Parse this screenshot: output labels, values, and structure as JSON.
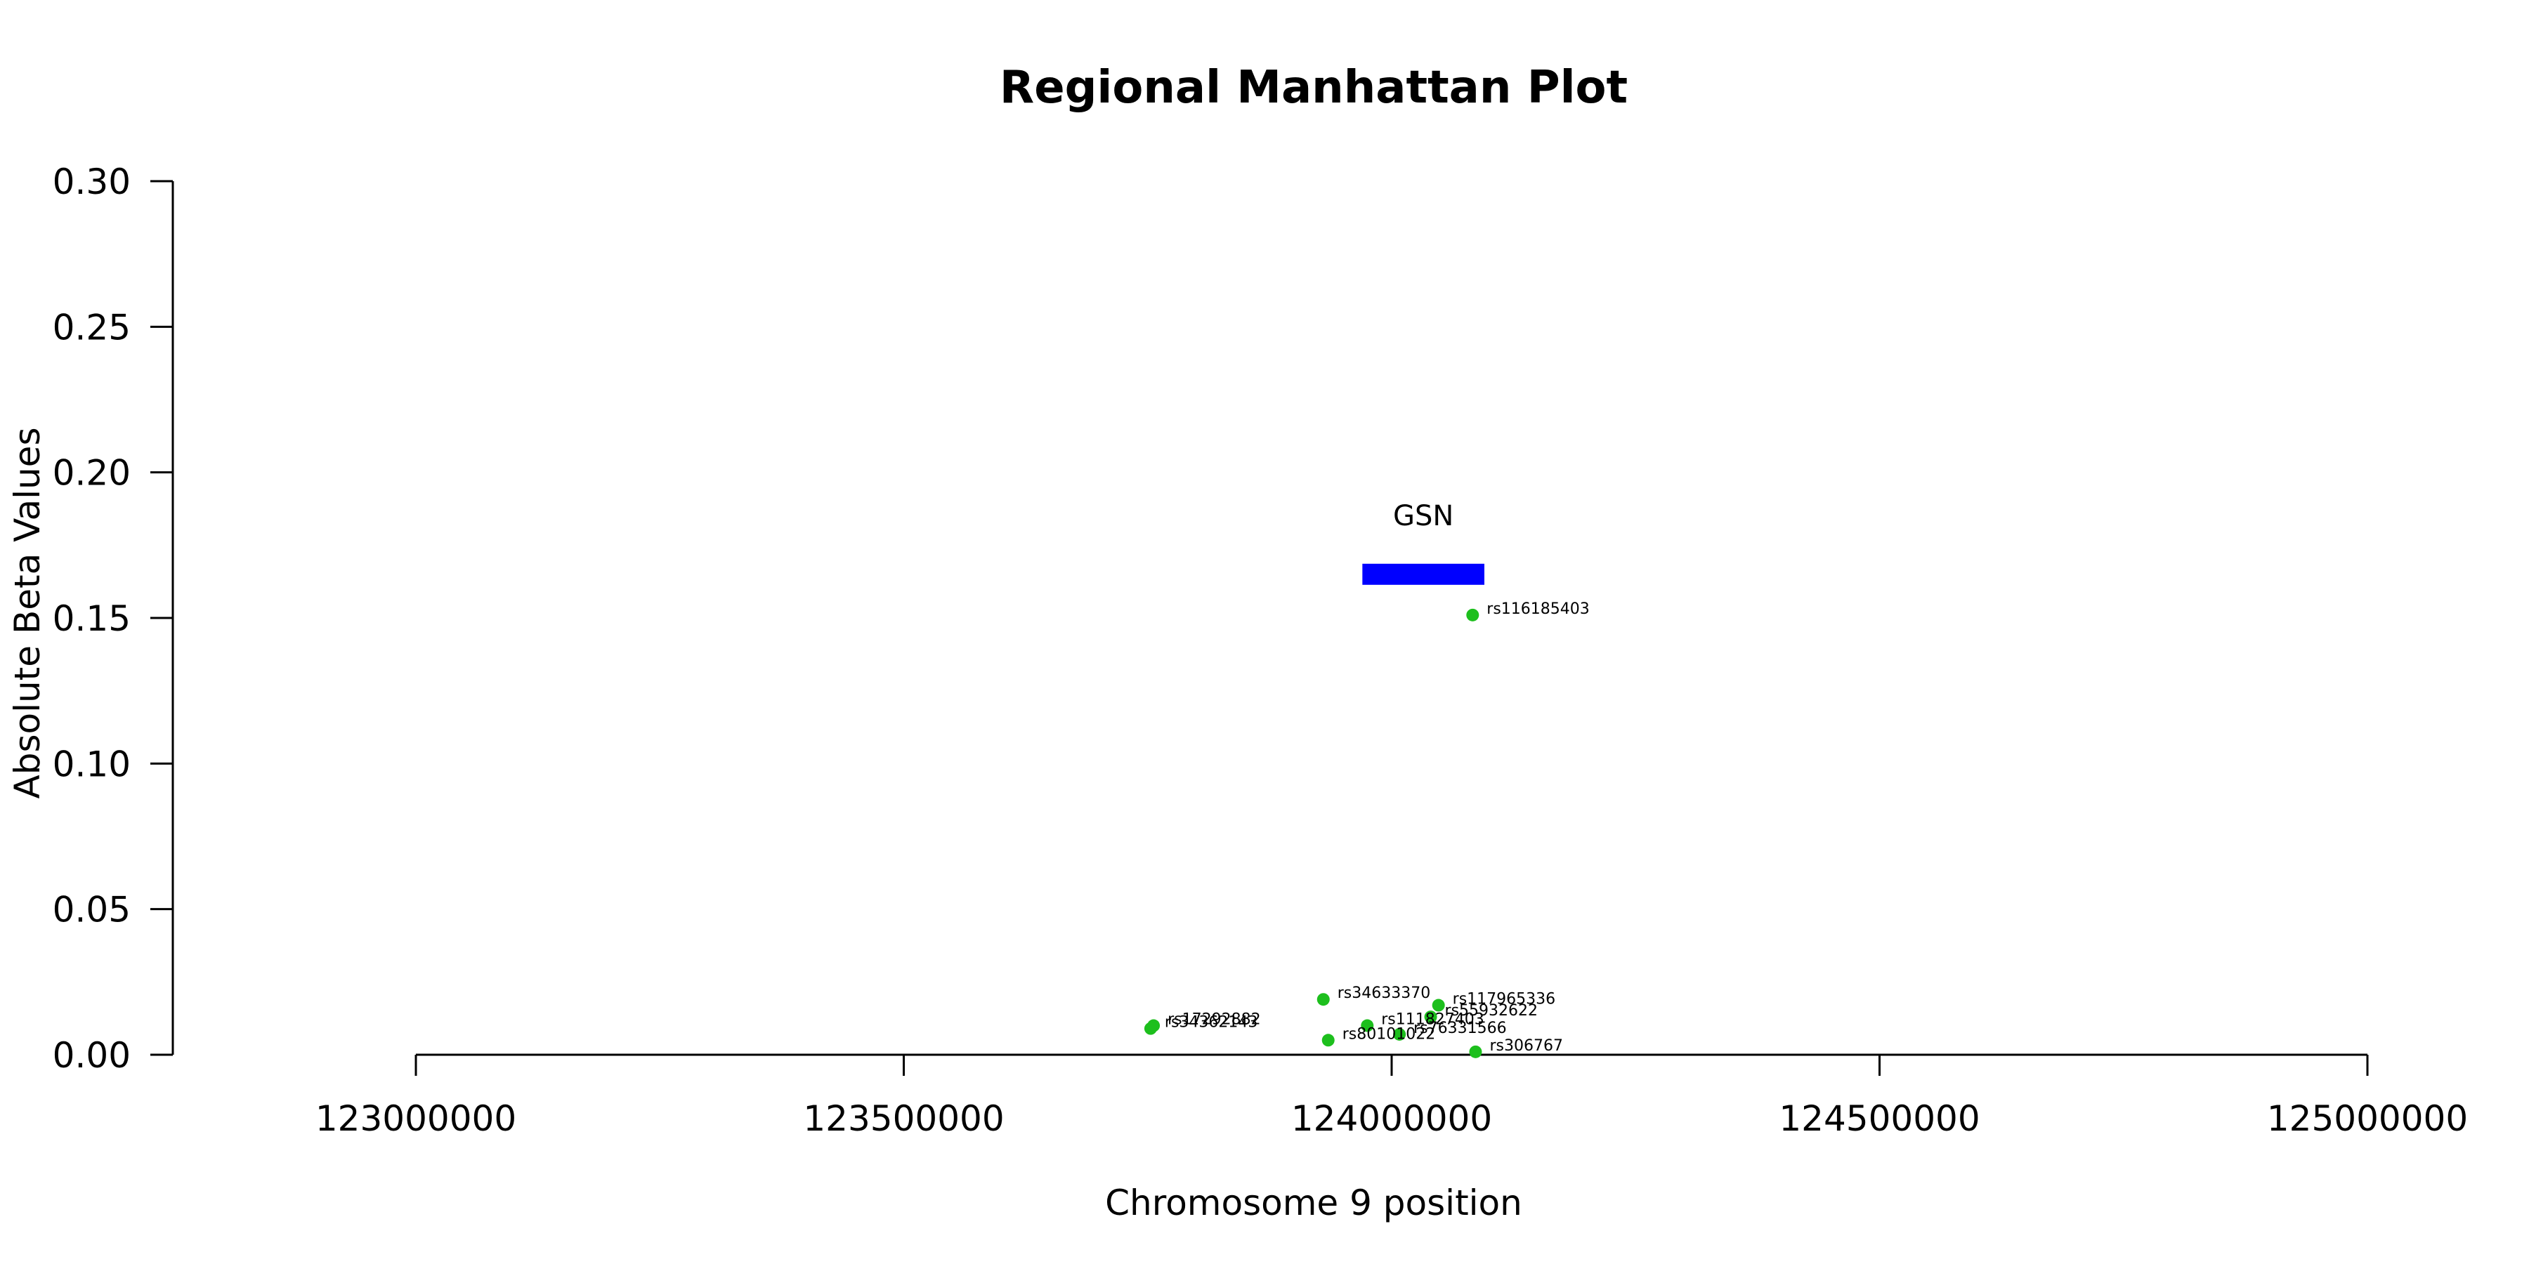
{
  "chart_data": {
    "type": "scatter",
    "title": "Regional Manhattan Plot",
    "xlabel": "Chromosome 9 position",
    "ylabel": "Absolute Beta Values",
    "xlim": [
      123000000,
      125000000
    ],
    "ylim": [
      0,
      0.3
    ],
    "x_ticks": [
      "123000000",
      "123500000",
      "124000000",
      "124500000",
      "125000000"
    ],
    "y_ticks": [
      "0.00",
      "0.05",
      "0.10",
      "0.15",
      "0.20",
      "0.25",
      "0.30"
    ],
    "grid": false,
    "point_color": "#1dbf1d",
    "gene": {
      "name": "GSN",
      "start": 123970000,
      "end": 124095000,
      "y": 0.165,
      "color": "#0000ff"
    },
    "points": [
      {
        "label": "rs116185403",
        "x": 124083000,
        "y": 0.151
      },
      {
        "label": "rs34633370",
        "x": 123930000,
        "y": 0.019
      },
      {
        "label": "rs117965336",
        "x": 124048000,
        "y": 0.017
      },
      {
        "label": "rs55932622",
        "x": 124040000,
        "y": 0.013
      },
      {
        "label": "rs111827403",
        "x": 123975000,
        "y": 0.01
      },
      {
        "label": "rs17292882",
        "x": 123756000,
        "y": 0.01
      },
      {
        "label": "rs34362143",
        "x": 123753000,
        "y": 0.009
      },
      {
        "label": "rs76331566",
        "x": 124008000,
        "y": 0.007
      },
      {
        "label": "rs80101022",
        "x": 123935000,
        "y": 0.005
      },
      {
        "label": "rs306767",
        "x": 124086000,
        "y": 0.001
      }
    ]
  }
}
